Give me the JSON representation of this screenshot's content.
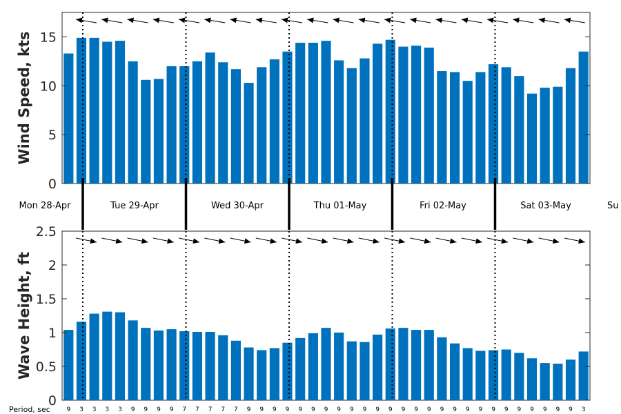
{
  "chart_data": [
    {
      "type": "bar",
      "ylabel": "Wind Speed, kts",
      "ylim": [
        0,
        17.5
      ],
      "yticks": [
        0,
        5,
        10,
        15
      ],
      "color": "#0072bd",
      "values": [
        13.3,
        14.9,
        14.9,
        14.5,
        14.6,
        12.5,
        10.6,
        10.7,
        12.0,
        12.0,
        12.5,
        13.4,
        12.4,
        11.7,
        10.3,
        11.9,
        12.7,
        13.5,
        14.4,
        14.4,
        14.6,
        12.6,
        11.8,
        12.8,
        14.3,
        14.7,
        14.0,
        14.1,
        13.9,
        11.5,
        11.4,
        10.5,
        11.4,
        12.2,
        11.9,
        11.0,
        9.2,
        9.8,
        9.9,
        11.8,
        13.5
      ],
      "direction_arrows": {
        "count": 20,
        "pointing": "left-up"
      }
    },
    {
      "type": "bar",
      "ylabel": "Wave Height, ft",
      "ylim": [
        0,
        2.5
      ],
      "yticks": [
        0,
        0.5,
        1,
        1.5,
        2,
        2.5
      ],
      "ytick_labels": [
        "0",
        "0.5",
        "1",
        "1.5",
        "2",
        "2.5"
      ],
      "color": "#0072bd",
      "values": [
        1.04,
        1.16,
        1.28,
        1.31,
        1.3,
        1.18,
        1.07,
        1.03,
        1.05,
        1.02,
        1.01,
        1.01,
        0.96,
        0.88,
        0.78,
        0.74,
        0.77,
        0.85,
        0.92,
        0.99,
        1.07,
        1.0,
        0.87,
        0.86,
        0.97,
        1.06,
        1.07,
        1.04,
        1.04,
        0.93,
        0.84,
        0.77,
        0.73,
        0.74,
        0.75,
        0.7,
        0.62,
        0.55,
        0.54,
        0.6,
        0.72
      ],
      "direction_arrows": {
        "count": 20,
        "pointing": "right-down"
      }
    }
  ],
  "days": [
    "Mon 28-Apr",
    "Tue 29-Apr",
    "Wed 30-Apr",
    "Thu 01-May",
    "Fri 02-May",
    "Sat 03-May",
    "Su"
  ],
  "period_title": "Period, sec",
  "periods": [
    "9",
    "3",
    "3",
    "3",
    "3",
    "9",
    "9",
    "9",
    "9",
    "7",
    "7",
    "7",
    "7",
    "7",
    "9",
    "9",
    "9",
    "9",
    "9",
    "9",
    "9",
    "9",
    "9",
    "9",
    "9",
    "9",
    "9",
    "9",
    "9",
    "9",
    "9",
    "9",
    "9",
    "9",
    "9",
    "9",
    "9",
    "9",
    "9",
    "9",
    "3"
  ]
}
